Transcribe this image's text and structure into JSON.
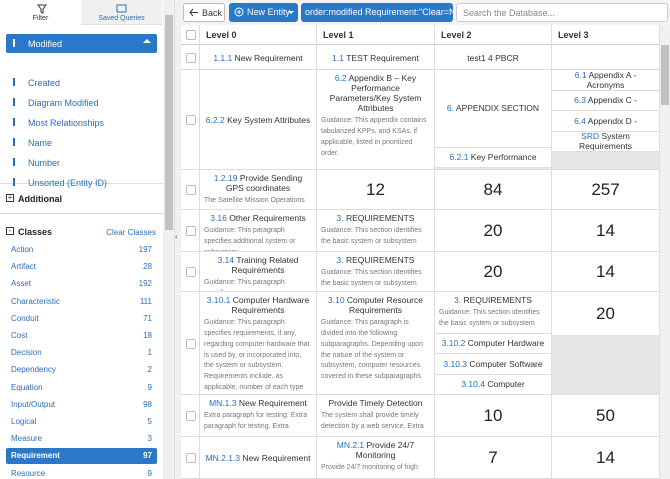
{
  "sidebar": {
    "tabs": [
      "Filter",
      "Saved Queries"
    ],
    "sort_options": [
      "Modified",
      "Created",
      "Diagram Modified",
      "Most Relationships",
      "Name",
      "Number",
      "Unsorted (Entity ID)"
    ],
    "additional": "Additional",
    "classes_title": "Classes",
    "clear_classes": "Clear Classes",
    "classes": [
      {
        "name": "Action",
        "count": 197
      },
      {
        "name": "Artifact",
        "count": 28
      },
      {
        "name": "Asset",
        "count": 192
      },
      {
        "name": "Characteristic",
        "count": 111
      },
      {
        "name": "Conduit",
        "count": 71
      },
      {
        "name": "Cost",
        "count": 18
      },
      {
        "name": "Decision",
        "count": 1
      },
      {
        "name": "Dependency",
        "count": 2
      },
      {
        "name": "Equation",
        "count": 9
      },
      {
        "name": "Input/Output",
        "count": 98
      },
      {
        "name": "Logical",
        "count": 5
      },
      {
        "name": "Measure",
        "count": 3
      },
      {
        "name": "Requirement",
        "count": 97
      },
      {
        "name": "Resource",
        "count": 9
      }
    ]
  },
  "toolbar": {
    "back": "Back",
    "new_entity": "New Entity",
    "query": "order:modified Requirement:\"Clear=No\"",
    "search_placeholder": "Search the Database..."
  },
  "table": {
    "headers": [
      "Level 0",
      "Level 1",
      "Level 2",
      "Level 3"
    ],
    "rows": [
      [
        {
          "items": [
            {
              "number": "1.1.1",
              "name": "New Requirement"
            }
          ]
        },
        {
          "items": [
            {
              "number": "1.1",
              "name": "TEST Requirement"
            }
          ]
        },
        {
          "items": [
            {
              "name": "test1 4 PBCR"
            }
          ]
        },
        {
          "items": []
        }
      ],
      [
        {
          "items": [
            {
              "number": "6.2.2",
              "name": "Key System Attributes"
            }
          ]
        },
        {
          "items": [
            {
              "number": "6.2",
              "name": "Appendix B – Key Performance Parameters/Key System Attributes",
              "guidance": "Guidance: This appendix contains tabularized KPPs, and KSAs, if applicable, listed in prioritized order."
            }
          ]
        },
        {
          "items": [
            {
              "number": "6.",
              "name": "APPENDIX SECTION"
            },
            {
              "number": "6.2.1",
              "name": "Key Performance"
            }
          ]
        },
        {
          "items": [
            {
              "number": "6.1",
              "name": "Appendix A - Acronyms"
            },
            {
              "number": "6.3",
              "name": "Appendix C -"
            },
            {
              "number": "6.4",
              "name": "Appendix D -"
            },
            {
              "number": "SRD",
              "name": "System Requirements"
            }
          ]
        }
      ],
      [
        {
          "items": [
            {
              "number": "1.2.19",
              "name": "Provide Sending GPS coordinates",
              "guidance": "The Satellite Mission Operations"
            }
          ]
        },
        {
          "count": 12
        },
        {
          "count": 84
        },
        {
          "count": 257
        }
      ],
      [
        {
          "items": [
            {
              "number": "3.16",
              "name": "Other Requirements",
              "guidance": "Guidance: This paragraph specifies additional system or subsystem"
            }
          ]
        },
        {
          "items": [
            {
              "number": "3.",
              "name": "REQUIREMENTS",
              "guidance": "Guidance: This section identifies the basic system or subsystem"
            }
          ]
        },
        {
          "count": 20
        },
        {
          "count": 14
        }
      ],
      [
        {
          "items": [
            {
              "number": "3.14",
              "name": "Training Related Requirements",
              "guidance": "Guidance: This paragraph specifies"
            }
          ]
        },
        {
          "items": [
            {
              "number": "3.",
              "name": "REQUIREMENTS",
              "guidance": "Guidance: This section identifies the basic system or subsystem"
            }
          ]
        },
        {
          "count": 20
        },
        {
          "count": 14
        }
      ],
      [
        {
          "items": [
            {
              "number": "3.10.1",
              "name": "Computer Hardware Requirements",
              "guidance": "Guidance: This paragraph specifies requirements, if any, regarding computer hardware that is used by, or incorporated into, the system or subsystem.  Requirements include, as applicable, number of each type"
            }
          ]
        },
        {
          "items": [
            {
              "number": "3.10",
              "name": "Computer Resource Requirements",
              "guidance": "Guidance: This paragraph is divided into the following subparagraphs.  Depending upon the nature of the system or subsystem, computer resources covered in these subparagraphs"
            }
          ]
        },
        {
          "items": [
            {
              "number": "3.",
              "name": "REQUIREMENTS",
              "guidance": "Guidance: This section identifies the basic system or subsystem"
            },
            {
              "number": "3.10.2",
              "name": "Computer Hardware"
            },
            {
              "number": "3.10.3",
              "name": "Computer Software"
            },
            {
              "number": "3.10.4",
              "name": "Computer"
            }
          ]
        },
        {
          "count": 20
        }
      ],
      [
        {
          "items": [
            {
              "number": "MN.1.3",
              "name": "New Requirement",
              "guidance": "Extra paragraph for testing. Extra paragraph for testing. Extra"
            }
          ]
        },
        {
          "items": [
            {
              "name": "Provide Timely Detection",
              "guidance": "The system shall provide timely detection by a web service. Extra"
            }
          ]
        },
        {
          "count": 10
        },
        {
          "count": 50
        }
      ],
      [
        {
          "items": [
            {
              "number": "MN.2.1.3",
              "name": "New Requirement"
            }
          ]
        },
        {
          "items": [
            {
              "number": "MN.2.1",
              "name": "Provide 24/7 Monitoring",
              "guidance": "Provide 24/7 monitoring of high"
            }
          ]
        },
        {
          "count": 7
        },
        {
          "count": 14
        }
      ]
    ]
  }
}
